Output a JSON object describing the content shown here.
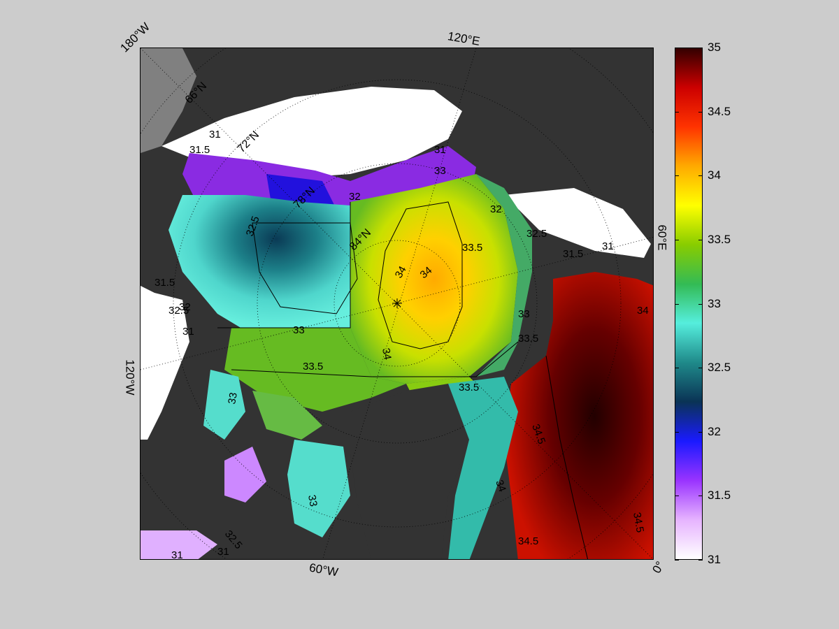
{
  "map": {
    "projection": "polar-stereographic",
    "center": "north-pole",
    "meridian_labels": {
      "top_left": "180°W",
      "top": "120°E",
      "right": "60°E",
      "left": "120°W",
      "bottom": "60°W",
      "bottom_right": "0°"
    },
    "parallel_labels": [
      "66°N",
      "72°N",
      "78°N",
      "84°N"
    ],
    "contour_labels": [
      "31",
      "31.5",
      "31",
      "32",
      "32.5",
      "33",
      "33.5",
      "34",
      "34",
      "34",
      "33.5",
      "33",
      "32.5",
      "32",
      "31.5",
      "31",
      "34.5",
      "34.5",
      "34",
      "33.5",
      "33",
      "32.5",
      "32",
      "31.5",
      "31",
      "33",
      "33.5",
      "34",
      "34.5",
      "33",
      "32.5",
      "31",
      "31"
    ],
    "colors": {
      "land": "#333333",
      "land_ice_gray": "#808080",
      "no_data": "#ffffff",
      "background": "#cccccc"
    }
  },
  "colorbar": {
    "min": 31,
    "max": 35,
    "ticks": [
      "35",
      "34.5",
      "34",
      "33.5",
      "33",
      "32.5",
      "32",
      "31.5",
      "31"
    ],
    "tick_values": [
      35,
      34.5,
      34,
      33.5,
      33,
      32.5,
      32,
      31.5,
      31
    ],
    "colors": [
      "#ffffff",
      "#e6b3ff",
      "#9933ff",
      "#1a1aff",
      "#0a3355",
      "#1f8a8a",
      "#55eedd",
      "#33bb55",
      "#88cc00",
      "#ffff00",
      "#ffaa00",
      "#ff3300",
      "#cc0000",
      "#330000"
    ]
  }
}
